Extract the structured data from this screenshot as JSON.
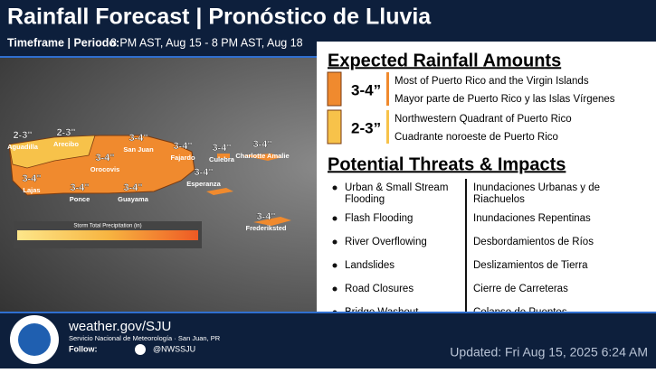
{
  "header": {
    "title": "Rainfall Forecast | Pronóstico de Lluvia",
    "timeframe_label": "Timeframe | Periodo:",
    "timeframe": "8 PM AST, Aug 15 - 8 PM AST, Aug 18"
  },
  "map": {
    "legend_title": "Storm Total Precipitation (in)",
    "labels": [
      {
        "amount": "2-3\"",
        "place": "Aguadilla"
      },
      {
        "amount": "2-3\"",
        "place": "Arecibo"
      },
      {
        "amount": "3-4\"",
        "place": "San Juan"
      },
      {
        "amount": "3-4\"",
        "place": "Fajardo"
      },
      {
        "amount": "3-4\"",
        "place": "Culebra"
      },
      {
        "amount": "3-4\"",
        "place": "Charlotte Amalie"
      },
      {
        "amount": "3-4\"",
        "place": "Orocovis"
      },
      {
        "amount": "3-4\"",
        "place": "Esperanza"
      },
      {
        "amount": "3-4\"",
        "place": "Lajas"
      },
      {
        "amount": "3-4\"",
        "place": "Ponce"
      },
      {
        "amount": "3-4\"",
        "place": "Guayama"
      },
      {
        "amount": "3-4\"",
        "place": "Frederiksted"
      }
    ]
  },
  "rainfall": {
    "title": "Expected Rainfall Amounts",
    "rows": [
      {
        "amount": "3-4”",
        "english": "Most of Puerto Rico and the Virgin Islands",
        "spanish": "Mayor parte de Puerto Rico y las Islas Vírgenes"
      },
      {
        "amount": "2-3”",
        "english": "Northwestern Quadrant of Puerto Rico",
        "spanish": "Cuadrante noroeste de Puerto Rico"
      }
    ]
  },
  "threats": {
    "title": "Potential Threats & Impacts",
    "rows": [
      {
        "english": "Urban & Small Stream Flooding",
        "spanish": "Inundaciones Urbanas y de Riachuelos"
      },
      {
        "english": "Flash Flooding",
        "spanish": "Inundaciones Repentinas"
      },
      {
        "english": "River Overflowing",
        "spanish": "Desbordamientos de Ríos"
      },
      {
        "english": "Landslides",
        "spanish": "Deslizamientos de Tierra"
      },
      {
        "english": "Road Closures",
        "spanish": "Cierre de Carreteras"
      },
      {
        "english": "Bridge Washout",
        "spanish": "Colapso de Puentes"
      }
    ]
  },
  "footer": {
    "website": "weather.gov/SJU",
    "office": "Servicio Nacional de Meteorología · San Juan, PR",
    "follow": "Follow:",
    "handle": "@NWSSJU",
    "updated": "Updated: Fri Aug 15, 2025 6:24 AM"
  }
}
